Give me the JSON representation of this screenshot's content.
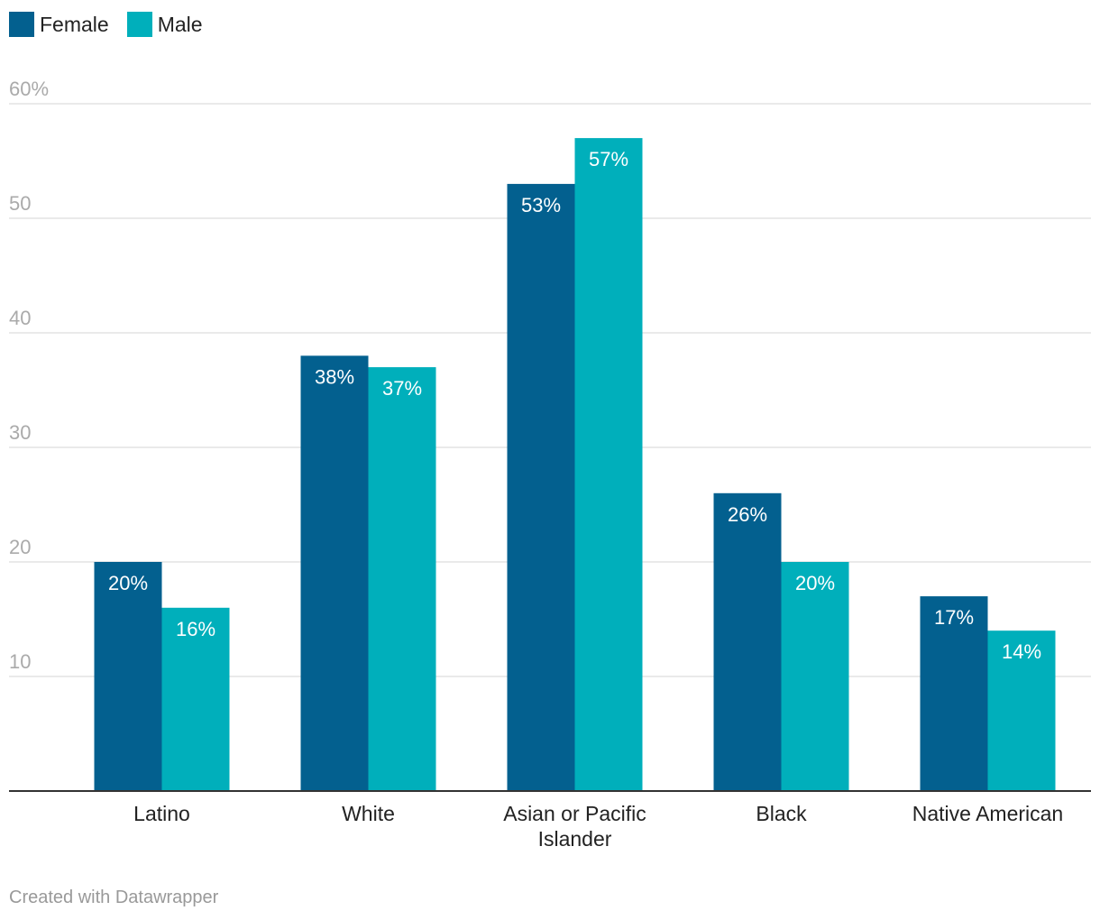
{
  "legend": [
    {
      "label": "Female",
      "color": "#03608f"
    },
    {
      "label": "Male",
      "color": "#00afbb"
    }
  ],
  "chart_data": {
    "type": "bar",
    "categories": [
      "Latino",
      "White",
      "Asian or Pacific Islander",
      "Black",
      "Native American"
    ],
    "series": [
      {
        "name": "Female",
        "values": [
          20,
          38,
          53,
          26,
          17
        ],
        "color": "#03608f"
      },
      {
        "name": "Male",
        "values": [
          16,
          37,
          57,
          20,
          14
        ],
        "color": "#00afbb"
      }
    ],
    "value_labels": [
      [
        "20%",
        "38%",
        "53%",
        "26%",
        "17%"
      ],
      [
        "16%",
        "37%",
        "57%",
        "20%",
        "14%"
      ]
    ],
    "y_ticks": [
      10,
      20,
      30,
      40,
      50,
      60
    ],
    "y_tick_labels": [
      "10",
      "20",
      "30",
      "40",
      "50",
      "60%"
    ],
    "ylim": [
      0,
      60
    ],
    "grid": true,
    "legend_position": "top-left"
  },
  "footer": {
    "credit": "Created with Datawrapper"
  }
}
